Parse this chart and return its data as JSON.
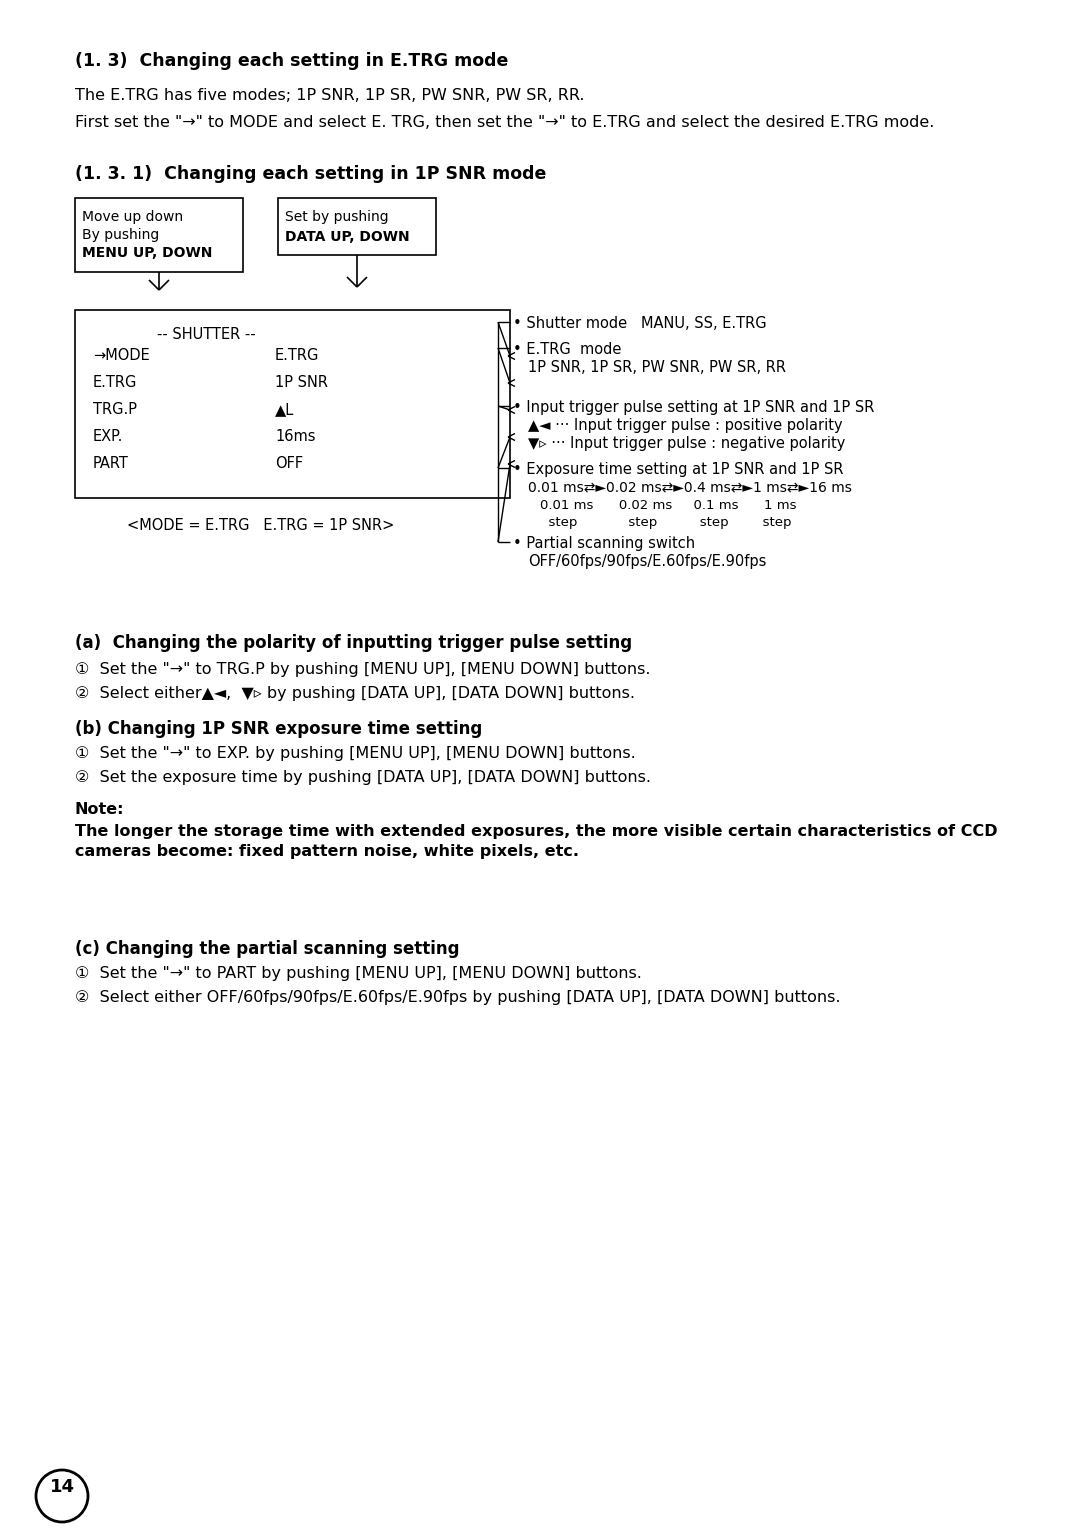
{
  "bg_color": "#ffffff",
  "text_color": "#000000",
  "page_number": "14",
  "sections": {
    "title1": "(1. 3)  Changing each setting in E.TRG mode",
    "para1": "The E.TRG has five modes; 1P SNR, 1P SR, PW SNR, PW SR, RR.",
    "para2": "First set the \"→\" to MODE and select E. TRG, then set the \"→\" to E.TRG and select the desired E.TRG mode.",
    "title2": "(1. 3. 1)  Changing each setting in 1P SNR mode",
    "menu_label": "-- SHUTTER --",
    "menu_left_col": [
      "→MODE",
      "E.TRG",
      "TRG.P",
      "EXP.",
      "PART"
    ],
    "menu_right_col": [
      "E.TRG",
      "1P SNR",
      "▲L",
      "16ms",
      "OFF"
    ],
    "caption": "<MODE = E.TRG   E.TRG = 1P SNR>",
    "section_a_title": "(a)  Changing the polarity of inputting trigger pulse setting",
    "section_a_steps": [
      "Set the \"→\" to TRG.P by pushing [MENU UP], [MENU DOWN] buttons.",
      "Select either▲◄,  ▼▹ by pushing [DATA UP], [DATA DOWN] buttons."
    ],
    "section_b_title": "(b) Changing 1P SNR exposure time setting",
    "section_b_steps": [
      "Set the \"→\" to EXP. by pushing [MENU UP], [MENU DOWN] buttons.",
      "Set the exposure time by pushing [DATA UP], [DATA DOWN] buttons."
    ],
    "note_label": "Note:",
    "note_line1": "The longer the storage time with extended exposures, the more visible certain characteristics of CCD",
    "note_line2": "cameras become: fixed pattern noise, white pixels, etc.",
    "section_c_title": "(c) Changing the partial scanning setting",
    "section_c_steps": [
      "Set the \"→\" to PART by pushing [MENU UP], [MENU DOWN] buttons.",
      "Select either OFF/60fps/90fps/E.60fps/E.90fps by pushing [DATA UP], [DATA DOWN] buttons."
    ]
  }
}
